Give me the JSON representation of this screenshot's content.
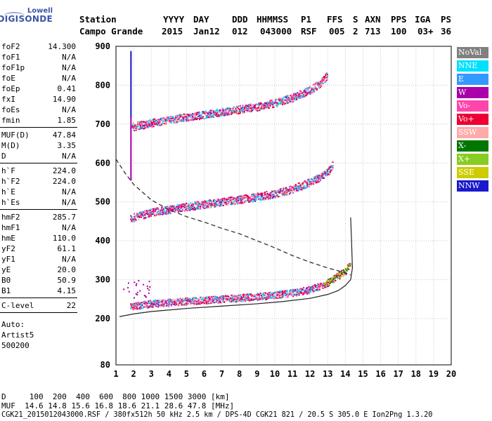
{
  "logo": {
    "line1": "Lowell",
    "line2": "DIGISONDE"
  },
  "header": {
    "labels": [
      "Station",
      "YYYY",
      "DAY",
      "DDD",
      "HHMMSS",
      "P1",
      "FFS",
      "S",
      "AXN",
      "PPS",
      "IGA",
      "PS"
    ],
    "values": [
      "Campo Grande",
      "2015",
      "Jan12",
      "012",
      "043000",
      "RSF",
      "005",
      "2",
      "713",
      "100",
      "03+",
      "36"
    ]
  },
  "params_group1": [
    {
      "name": "foF2",
      "value": "14.300"
    },
    {
      "name": "foF1",
      "value": "N/A"
    },
    {
      "name": "foF1p",
      "value": "N/A"
    },
    {
      "name": "foE",
      "value": "N/A"
    },
    {
      "name": "foEp",
      "value": "0.41"
    },
    {
      "name": "fxI",
      "value": "14.90"
    },
    {
      "name": "foEs",
      "value": "N/A"
    },
    {
      "name": "fmin",
      "value": "1.85"
    }
  ],
  "params_group2": [
    {
      "name": "MUF(D)",
      "value": "47.84"
    },
    {
      "name": "M(D)",
      "value": "3.35"
    },
    {
      "name": "D",
      "value": "N/A"
    }
  ],
  "params_group3": [
    {
      "name": "h`F",
      "value": "224.0"
    },
    {
      "name": "h`F2",
      "value": "224.0"
    },
    {
      "name": "h`E",
      "value": "N/A"
    },
    {
      "name": "h`Es",
      "value": "N/A"
    }
  ],
  "params_group4": [
    {
      "name": "hmF2",
      "value": "285.7"
    },
    {
      "name": "hmF1",
      "value": "N/A"
    },
    {
      "name": "hmE",
      "value": "110.0"
    },
    {
      "name": "yF2",
      "value": "61.1"
    },
    {
      "name": "yF1",
      "value": "N/A"
    },
    {
      "name": "yE",
      "value": "20.0"
    },
    {
      "name": "B0",
      "value": "50.9"
    },
    {
      "name": "B1",
      "value": "4.15"
    }
  ],
  "params_group5": [
    {
      "name": "C-level",
      "value": "22"
    }
  ],
  "autoscale": {
    "line1": "Auto:",
    "line2": "Artist5",
    "line3": "500200"
  },
  "legend": [
    {
      "label": "NoVal",
      "color": "#808080"
    },
    {
      "label": "NNE",
      "color": "#00e0ff"
    },
    {
      "label": "E",
      "color": "#3399ff"
    },
    {
      "label": "W",
      "color": "#aa00aa"
    },
    {
      "label": "Vo-",
      "color": "#ff44aa"
    },
    {
      "label": "Vo+",
      "color": "#ee0033"
    },
    {
      "label": "SSW",
      "color": "#ffaaaa"
    },
    {
      "label": "X-",
      "color": "#007700"
    },
    {
      "label": "X+",
      "color": "#88cc22"
    },
    {
      "label": "SSE",
      "color": "#cccc00"
    },
    {
      "label": "NNW",
      "color": "#1a1acc"
    }
  ],
  "footer": {
    "d_line": "D     100  200  400  600  800 1000 1500 3000 [km]",
    "muf_line": "MUF  14.6 14.8 15.6 16.8 18.6 21.1 28.6 47.8 [MHz]",
    "file_line": "CGK21_2015012043000.RSF / 380fx512h 50 kHz 2.5 km / DPS-4D CGK21 821 / 20.5 S 305.0 E Ion2Png 1.3.20"
  },
  "chart_data": {
    "type": "scatter",
    "x_ticks": [
      1,
      2,
      3,
      4,
      5,
      6,
      7,
      8,
      9,
      10,
      11,
      12,
      13,
      14,
      15,
      16,
      17,
      18,
      19,
      20
    ],
    "y_ticks": [
      80,
      200,
      300,
      400,
      500,
      600,
      700,
      800,
      900
    ],
    "xlim": [
      1,
      20
    ],
    "ylim": [
      80,
      900
    ],
    "y_scale": "piecewise (80-200 compressed, 200-900 linear)",
    "grid": true,
    "traces": [
      {
        "name": "first-hop O/X echoes",
        "color": "#ee0033",
        "x": [
          1.8,
          3,
          5,
          7,
          9,
          10,
          11,
          12,
          12.5,
          13,
          13.5,
          14,
          14.3
        ],
        "y": [
          228,
          236,
          242,
          248,
          254,
          258,
          264,
          272,
          280,
          290,
          305,
          320,
          345
        ]
      },
      {
        "name": "second-hop echoes",
        "color": "#ee0033",
        "x": [
          1.8,
          3,
          5,
          7,
          9,
          10,
          11,
          12,
          12.5,
          13,
          13.3
        ],
        "y": [
          455,
          470,
          485,
          497,
          510,
          518,
          530,
          548,
          560,
          575,
          595
        ]
      },
      {
        "name": "third-hop echoes",
        "color": "#ee0033",
        "x": [
          1.9,
          3,
          5,
          7,
          9,
          10,
          11,
          12,
          12.5,
          13
        ],
        "y": [
          690,
          700,
          715,
          728,
          742,
          752,
          765,
          785,
          800,
          825
        ]
      }
    ],
    "profile_solid": {
      "x": [
        1.2,
        2,
        3,
        5,
        7,
        9,
        10.5,
        12,
        13,
        13.6,
        14,
        14.3,
        14.4,
        14.35,
        14.3
      ],
      "y": [
        205,
        212,
        218,
        226,
        232,
        238,
        244,
        252,
        262,
        272,
        285,
        300,
        330,
        400,
        460
      ]
    },
    "profile_dashed": {
      "x": [
        1.0,
        1.5,
        2,
        3,
        4,
        5,
        6,
        7,
        8,
        9,
        10,
        11,
        12,
        13,
        14,
        14.3
      ],
      "y": [
        610,
        575,
        545,
        505,
        480,
        462,
        448,
        432,
        418,
        400,
        382,
        362,
        345,
        330,
        318,
        312
      ]
    }
  }
}
